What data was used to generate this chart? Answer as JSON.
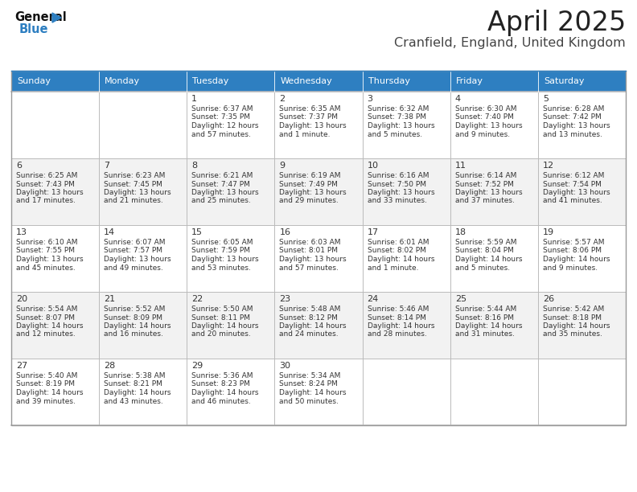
{
  "title": "April 2025",
  "subtitle": "Cranfield, England, United Kingdom",
  "header_color": "#2E7FC1",
  "header_text_color": "#FFFFFF",
  "odd_row_color": "#FFFFFF",
  "even_row_color": "#F2F2F2",
  "border_color": "#BBBBBB",
  "title_color": "#222222",
  "subtitle_color": "#444444",
  "text_color": "#333333",
  "day_names": [
    "Sunday",
    "Monday",
    "Tuesday",
    "Wednesday",
    "Thursday",
    "Friday",
    "Saturday"
  ],
  "days": [
    {
      "day": 1,
      "col": 2,
      "row": 0,
      "sunrise": "6:37 AM",
      "sunset": "7:35 PM",
      "daylight": "12 hours and 57 minutes."
    },
    {
      "day": 2,
      "col": 3,
      "row": 0,
      "sunrise": "6:35 AM",
      "sunset": "7:37 PM",
      "daylight": "13 hours and 1 minute."
    },
    {
      "day": 3,
      "col": 4,
      "row": 0,
      "sunrise": "6:32 AM",
      "sunset": "7:38 PM",
      "daylight": "13 hours and 5 minutes."
    },
    {
      "day": 4,
      "col": 5,
      "row": 0,
      "sunrise": "6:30 AM",
      "sunset": "7:40 PM",
      "daylight": "13 hours and 9 minutes."
    },
    {
      "day": 5,
      "col": 6,
      "row": 0,
      "sunrise": "6:28 AM",
      "sunset": "7:42 PM",
      "daylight": "13 hours and 13 minutes."
    },
    {
      "day": 6,
      "col": 0,
      "row": 1,
      "sunrise": "6:25 AM",
      "sunset": "7:43 PM",
      "daylight": "13 hours and 17 minutes."
    },
    {
      "day": 7,
      "col": 1,
      "row": 1,
      "sunrise": "6:23 AM",
      "sunset": "7:45 PM",
      "daylight": "13 hours and 21 minutes."
    },
    {
      "day": 8,
      "col": 2,
      "row": 1,
      "sunrise": "6:21 AM",
      "sunset": "7:47 PM",
      "daylight": "13 hours and 25 minutes."
    },
    {
      "day": 9,
      "col": 3,
      "row": 1,
      "sunrise": "6:19 AM",
      "sunset": "7:49 PM",
      "daylight": "13 hours and 29 minutes."
    },
    {
      "day": 10,
      "col": 4,
      "row": 1,
      "sunrise": "6:16 AM",
      "sunset": "7:50 PM",
      "daylight": "13 hours and 33 minutes."
    },
    {
      "day": 11,
      "col": 5,
      "row": 1,
      "sunrise": "6:14 AM",
      "sunset": "7:52 PM",
      "daylight": "13 hours and 37 minutes."
    },
    {
      "day": 12,
      "col": 6,
      "row": 1,
      "sunrise": "6:12 AM",
      "sunset": "7:54 PM",
      "daylight": "13 hours and 41 minutes."
    },
    {
      "day": 13,
      "col": 0,
      "row": 2,
      "sunrise": "6:10 AM",
      "sunset": "7:55 PM",
      "daylight": "13 hours and 45 minutes."
    },
    {
      "day": 14,
      "col": 1,
      "row": 2,
      "sunrise": "6:07 AM",
      "sunset": "7:57 PM",
      "daylight": "13 hours and 49 minutes."
    },
    {
      "day": 15,
      "col": 2,
      "row": 2,
      "sunrise": "6:05 AM",
      "sunset": "7:59 PM",
      "daylight": "13 hours and 53 minutes."
    },
    {
      "day": 16,
      "col": 3,
      "row": 2,
      "sunrise": "6:03 AM",
      "sunset": "8:01 PM",
      "daylight": "13 hours and 57 minutes."
    },
    {
      "day": 17,
      "col": 4,
      "row": 2,
      "sunrise": "6:01 AM",
      "sunset": "8:02 PM",
      "daylight": "14 hours and 1 minute."
    },
    {
      "day": 18,
      "col": 5,
      "row": 2,
      "sunrise": "5:59 AM",
      "sunset": "8:04 PM",
      "daylight": "14 hours and 5 minutes."
    },
    {
      "day": 19,
      "col": 6,
      "row": 2,
      "sunrise": "5:57 AM",
      "sunset": "8:06 PM",
      "daylight": "14 hours and 9 minutes."
    },
    {
      "day": 20,
      "col": 0,
      "row": 3,
      "sunrise": "5:54 AM",
      "sunset": "8:07 PM",
      "daylight": "14 hours and 12 minutes."
    },
    {
      "day": 21,
      "col": 1,
      "row": 3,
      "sunrise": "5:52 AM",
      "sunset": "8:09 PM",
      "daylight": "14 hours and 16 minutes."
    },
    {
      "day": 22,
      "col": 2,
      "row": 3,
      "sunrise": "5:50 AM",
      "sunset": "8:11 PM",
      "daylight": "14 hours and 20 minutes."
    },
    {
      "day": 23,
      "col": 3,
      "row": 3,
      "sunrise": "5:48 AM",
      "sunset": "8:12 PM",
      "daylight": "14 hours and 24 minutes."
    },
    {
      "day": 24,
      "col": 4,
      "row": 3,
      "sunrise": "5:46 AM",
      "sunset": "8:14 PM",
      "daylight": "14 hours and 28 minutes."
    },
    {
      "day": 25,
      "col": 5,
      "row": 3,
      "sunrise": "5:44 AM",
      "sunset": "8:16 PM",
      "daylight": "14 hours and 31 minutes."
    },
    {
      "day": 26,
      "col": 6,
      "row": 3,
      "sunrise": "5:42 AM",
      "sunset": "8:18 PM",
      "daylight": "14 hours and 35 minutes."
    },
    {
      "day": 27,
      "col": 0,
      "row": 4,
      "sunrise": "5:40 AM",
      "sunset": "8:19 PM",
      "daylight": "14 hours and 39 minutes."
    },
    {
      "day": 28,
      "col": 1,
      "row": 4,
      "sunrise": "5:38 AM",
      "sunset": "8:21 PM",
      "daylight": "14 hours and 43 minutes."
    },
    {
      "day": 29,
      "col": 2,
      "row": 4,
      "sunrise": "5:36 AM",
      "sunset": "8:23 PM",
      "daylight": "14 hours and 46 minutes."
    },
    {
      "day": 30,
      "col": 3,
      "row": 4,
      "sunrise": "5:34 AM",
      "sunset": "8:24 PM",
      "daylight": "14 hours and 50 minutes."
    }
  ],
  "logo_general_color": "#111111",
  "logo_blue_color": "#2E7FC1",
  "triangle_color": "#2E7FC1"
}
